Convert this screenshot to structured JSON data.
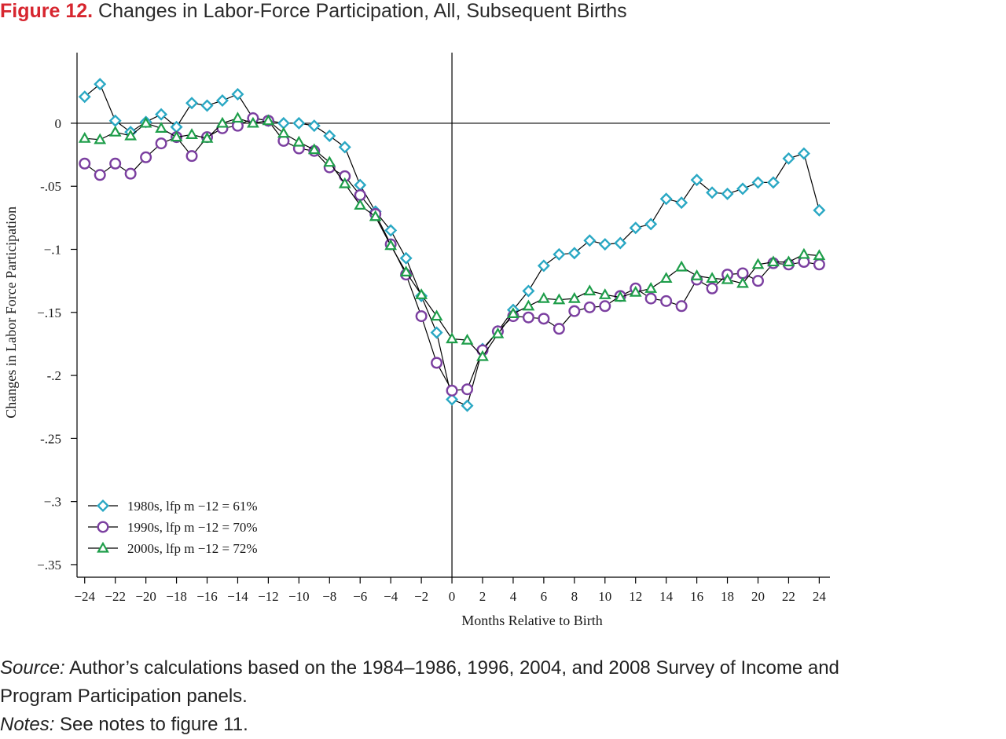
{
  "figure": {
    "number_label": "Figure 12.",
    "title_text": "Changes in Labor-Force Participation, All, Subsequent Births"
  },
  "source": {
    "lead": "Source:",
    "line1": "Author’s calculations based on the 1984–1986, 1996, 2004, and 2008 Survey of Income and",
    "line2": "Program Participation panels."
  },
  "notes": {
    "lead": "Notes:",
    "text": "See notes to figure 11."
  },
  "chart_data": {
    "type": "line",
    "xlabel": "Months Relative to Birth",
    "ylabel": "Changes in Labor Force Participation",
    "xlim": [
      -24.5,
      24.7
    ],
    "ylim": [
      -0.36,
      0.056
    ],
    "x_ticks": [
      -24,
      -22,
      -20,
      -18,
      -16,
      -14,
      -12,
      -10,
      -8,
      -6,
      -4,
      -2,
      0,
      2,
      4,
      6,
      8,
      10,
      12,
      14,
      16,
      18,
      20,
      22,
      24
    ],
    "x_tick_labels": [
      "−24",
      "−22",
      "−20",
      "−18",
      "−16",
      "−14",
      "−12",
      "−10",
      "−8",
      "−6",
      "−4",
      "−2",
      "0",
      "2",
      "4",
      "6",
      "8",
      "10",
      "12",
      "14",
      "16",
      "18",
      "20",
      "22",
      "24"
    ],
    "y_ticks": [
      0,
      -0.05,
      -0.1,
      -0.15,
      -0.2,
      -0.25,
      -0.3,
      -0.35
    ],
    "y_tick_labels": [
      "0",
      "-.05",
      "−.1",
      "−.15",
      "-.2",
      "-.25",
      "−.3",
      "−.35"
    ],
    "reference_lines": {
      "y": 0,
      "x": 0
    },
    "grid": false,
    "legend_position": "bottom-left",
    "x": [
      -24,
      -23,
      -22,
      -21,
      -20,
      -19,
      -18,
      -17,
      -16,
      -15,
      -14,
      -13,
      -12,
      -11,
      -10,
      -9,
      -8,
      -7,
      -6,
      -5,
      -4,
      -3,
      -2,
      -1,
      0,
      1,
      2,
      3,
      4,
      5,
      6,
      7,
      8,
      9,
      10,
      11,
      12,
      13,
      14,
      15,
      16,
      17,
      18,
      19,
      20,
      21,
      22,
      23,
      24
    ],
    "series": [
      {
        "name": "1980s, lfp m −12 = 61%",
        "color": "#2aa8c4",
        "marker": "diamond",
        "values": [
          0.021,
          0.031,
          0.002,
          -0.007,
          0.001,
          0.007,
          -0.003,
          0.016,
          0.014,
          0.018,
          0.023,
          0.004,
          0.002,
          0.0,
          0.0,
          -0.002,
          -0.01,
          -0.019,
          -0.049,
          -0.07,
          -0.085,
          -0.107,
          -0.137,
          -0.166,
          -0.219,
          -0.224,
          -0.179,
          -0.165,
          -0.148,
          -0.133,
          -0.113,
          -0.104,
          -0.103,
          -0.093,
          -0.096,
          -0.095,
          -0.083,
          -0.08,
          -0.06,
          -0.063,
          -0.045,
          -0.055,
          -0.056,
          -0.052,
          -0.047,
          -0.047,
          -0.028,
          -0.024,
          -0.069
        ]
      },
      {
        "name": "1990s, lfp m −12 = 70%",
        "color": "#7b3fa0",
        "marker": "circle",
        "values": [
          -0.032,
          -0.041,
          -0.032,
          -0.04,
          -0.027,
          -0.016,
          -0.011,
          -0.026,
          -0.011,
          -0.004,
          -0.002,
          0.004,
          0.002,
          -0.014,
          -0.02,
          -0.022,
          -0.035,
          -0.042,
          -0.057,
          -0.072,
          -0.096,
          -0.12,
          -0.153,
          -0.19,
          -0.212,
          -0.211,
          -0.18,
          -0.165,
          -0.153,
          -0.154,
          -0.155,
          -0.163,
          -0.149,
          -0.146,
          -0.145,
          -0.137,
          -0.131,
          -0.139,
          -0.141,
          -0.145,
          -0.124,
          -0.131,
          -0.12,
          -0.119,
          -0.125,
          -0.111,
          -0.112,
          -0.11,
          -0.112
        ]
      },
      {
        "name": "2000s, lfp m −12 = 72%",
        "color": "#1e9e4a",
        "marker": "triangle",
        "values": [
          -0.012,
          -0.013,
          -0.007,
          -0.01,
          0.0,
          -0.004,
          -0.011,
          -0.009,
          -0.012,
          0.0,
          0.004,
          0.0,
          0.002,
          -0.008,
          -0.015,
          -0.021,
          -0.031,
          -0.048,
          -0.065,
          -0.074,
          -0.097,
          -0.118,
          -0.136,
          -0.153,
          -0.171,
          -0.172,
          -0.185,
          -0.167,
          -0.151,
          -0.145,
          -0.139,
          -0.14,
          -0.139,
          -0.133,
          -0.136,
          -0.138,
          -0.134,
          -0.131,
          -0.123,
          -0.114,
          -0.121,
          -0.123,
          -0.124,
          -0.127,
          -0.112,
          -0.11,
          -0.11,
          -0.104,
          -0.105
        ]
      }
    ]
  }
}
